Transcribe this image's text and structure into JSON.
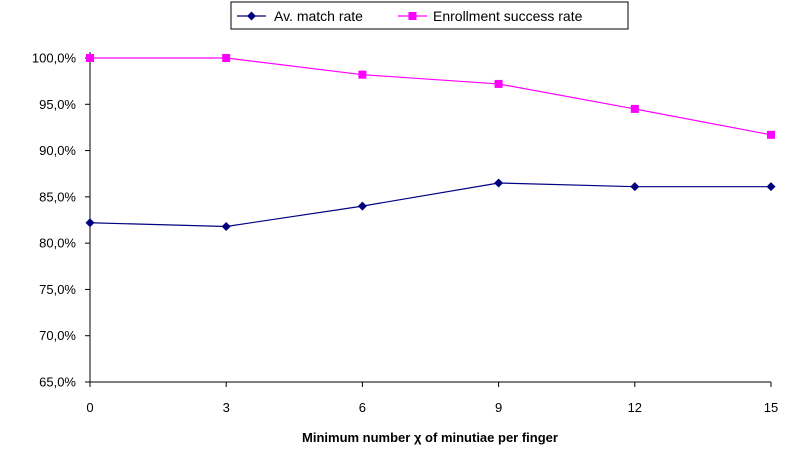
{
  "chart_data": {
    "type": "line",
    "title": "",
    "xlabel": "Minimum number χ of minutiae per finger",
    "ylabel": "",
    "x": [
      0,
      3,
      6,
      9,
      12,
      15
    ],
    "x_tick_labels": [
      "0",
      "3",
      "6",
      "9",
      "12",
      "15"
    ],
    "xlim": [
      0,
      15
    ],
    "ylim": [
      0.65,
      1.0
    ],
    "y_ticks": [
      0.65,
      0.7,
      0.75,
      0.8,
      0.85,
      0.9,
      0.95,
      1.0
    ],
    "y_tick_labels": [
      "65,0%",
      "70,0%",
      "75,0%",
      "80,0%",
      "85,0%",
      "90,0%",
      "95,0%",
      "100,0%"
    ],
    "grid": false,
    "legend_position": "top",
    "series": [
      {
        "name": "Av. match rate",
        "color": "#000080",
        "marker": "diamond",
        "values": [
          0.822,
          0.818,
          0.84,
          0.865,
          0.861,
          0.861
        ]
      },
      {
        "name": "Enrollment success rate",
        "color": "#ff00ff",
        "marker": "square",
        "values": [
          1.0,
          1.0,
          0.982,
          0.972,
          0.945,
          0.917
        ]
      }
    ]
  }
}
